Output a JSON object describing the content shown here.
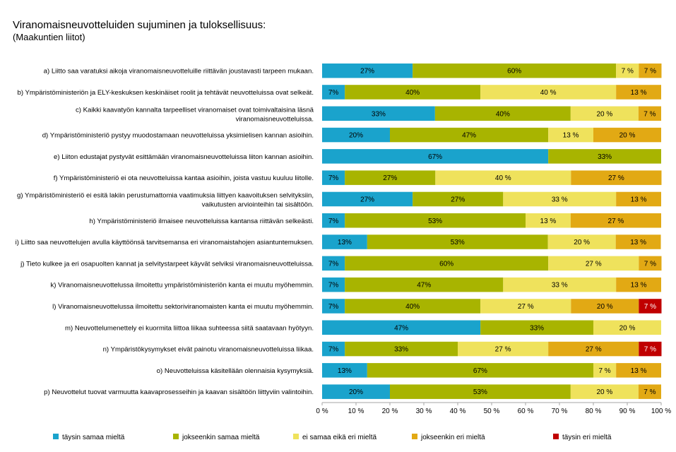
{
  "chart_data": {
    "type": "bar",
    "orientation": "horizontal",
    "stacked": "percent",
    "title": "Viranomaisneuvotteluiden sujuminen ja tuloksellisuus:",
    "subtitle": "(Maakuntien liitot)",
    "xlim": [
      0,
      100
    ],
    "x_ticks": [
      "0 %",
      "10 %",
      "20 %",
      "30 %",
      "40 %",
      "50 %",
      "60 %",
      "70 %",
      "80 %",
      "90 %",
      "100 %"
    ],
    "legend_position": "bottom",
    "categories": [
      [
        "a) Liitto saa varatuksi aikoja viranomaisneuvotteluille riittävän joustavasti tarpeen mukaan."
      ],
      [
        "b) Ympäristöministeriön ja ELY-keskuksen keskinäiset roolit ja tehtävät neuvotteluissa ovat selkeät."
      ],
      [
        "c) Kaikki kaavatyön kannalta tarpeelliset viranomaiset ovat toimivaltaisina läsnä",
        "viranomaisneuvotteluissa."
      ],
      [
        "d) Ympäristöministeriö pystyy muodostamaan neuvotteluissa yksimielisen kannan asioihin."
      ],
      [
        "e) Liiton edustajat pystyvät esittämään viranomaisneuvotteluissa liiton kannan asioihin."
      ],
      [
        "f) Ympäristöministeriö ei ota neuvotteluissa kantaa asioihin, joista vastuu kuuluu liitolle."
      ],
      [
        "g) Ympäristöministeriö ei esitä lakiin perustumattomia vaatimuksia liittyen kaavoituksen selvityksiin,",
        "vaikutusten arviointeihin tai sisältöön."
      ],
      [
        "h) Ympäristöministeriö ilmaisee neuvotteluissa kantansa riittävän selkeästi."
      ],
      [
        "i) Liitto saa neuvottelujen avulla käyttöönsä tarvitsemansa eri viranomaistahojen asiantuntemuksen."
      ],
      [
        "j) Tieto kulkee ja eri osapuolten kannat ja selvitystarpeet käyvät selviksi viranomaisneuvotteluissa."
      ],
      [
        "k) Viranomaisneuvottelussa ilmoitettu ympäristöministeriön kanta ei muutu myöhemmin."
      ],
      [
        "l) Viranomaisneuvottelussa ilmoitettu sektoriviranomaisten kanta ei muutu myöhemmin."
      ],
      [
        "m) Neuvottelumenettely ei kuormita liittoa liikaa suhteessa siitä saatavaan hyötyyn."
      ],
      [
        "n) Ympäristökysymykset eivät painotu viranomaisneuvotteluissa liikaa."
      ],
      [
        "o) Neuvotteluissa käsitellään olennaisia kysymyksiä."
      ],
      [
        "p) Neuvottelut tuovat varmuutta kaavaprosesseihin ja kaavan sisältöön liittyviin valintoihin."
      ]
    ],
    "series": [
      {
        "name": "täysin samaa mieltä",
        "color": "#1aa3cc",
        "values": [
          26.7,
          6.7,
          33.3,
          20.0,
          66.7,
          6.7,
          26.7,
          6.7,
          13.3,
          6.7,
          6.7,
          6.7,
          46.7,
          6.7,
          13.3,
          20.0
        ],
        "labels": [
          "27%",
          "7%",
          "33%",
          "20%",
          "67%",
          "7%",
          "27%",
          "7%",
          "13%",
          "7%",
          "7%",
          "7%",
          "47%",
          "7%",
          "13%",
          "20%"
        ]
      },
      {
        "name": "jokseenkin samaa mieltä",
        "color": "#a8b400",
        "values": [
          60.0,
          40.0,
          40.0,
          46.7,
          33.3,
          26.7,
          26.7,
          53.3,
          53.3,
          60.0,
          46.7,
          40.0,
          33.3,
          33.3,
          66.7,
          53.3
        ],
        "labels": [
          "60%",
          "40%",
          "40%",
          "47%",
          "33%",
          "27%",
          "27%",
          "53%",
          "53%",
          "60%",
          "47%",
          "40%",
          "33%",
          "33%",
          "67%",
          "53%"
        ]
      },
      {
        "name": "ei samaa eikä eri mieltä",
        "color": "#efe25c",
        "values": [
          6.7,
          40.0,
          20.0,
          13.3,
          0,
          40.0,
          33.3,
          13.3,
          20.0,
          26.7,
          33.3,
          26.7,
          20.0,
          26.7,
          6.7,
          20.0
        ],
        "labels": [
          "7 %",
          "40 %",
          "20 %",
          "13 %",
          "",
          "40 %",
          "33 %",
          "13 %",
          "20 %",
          "27 %",
          "33 %",
          "27 %",
          "20 %",
          "27 %",
          "7 %",
          "20 %"
        ]
      },
      {
        "name": "jokseenkin eri mieltä",
        "color": "#e2a914",
        "values": [
          6.7,
          13.3,
          6.7,
          20.0,
          0,
          26.7,
          13.3,
          26.7,
          13.3,
          6.7,
          13.3,
          20.0,
          0,
          26.7,
          13.3,
          6.7
        ],
        "labels": [
          "7 %",
          "13 %",
          "7 %",
          "20 %",
          "",
          "27 %",
          "13 %",
          "27 %",
          "13 %",
          "7 %",
          "13 %",
          "20 %",
          "",
          "27 %",
          "13 %",
          "7 %"
        ]
      },
      {
        "name": "täysin eri mieltä",
        "color": "#c00000",
        "values": [
          0,
          0,
          0,
          0,
          0,
          0,
          0,
          0,
          0,
          0,
          0,
          6.7,
          0,
          6.7,
          0,
          0
        ],
        "labels": [
          "",
          "",
          "",
          "",
          "",
          "",
          "",
          "",
          "",
          "",
          "",
          "7 %",
          "",
          "7 %",
          "",
          ""
        ]
      }
    ]
  }
}
